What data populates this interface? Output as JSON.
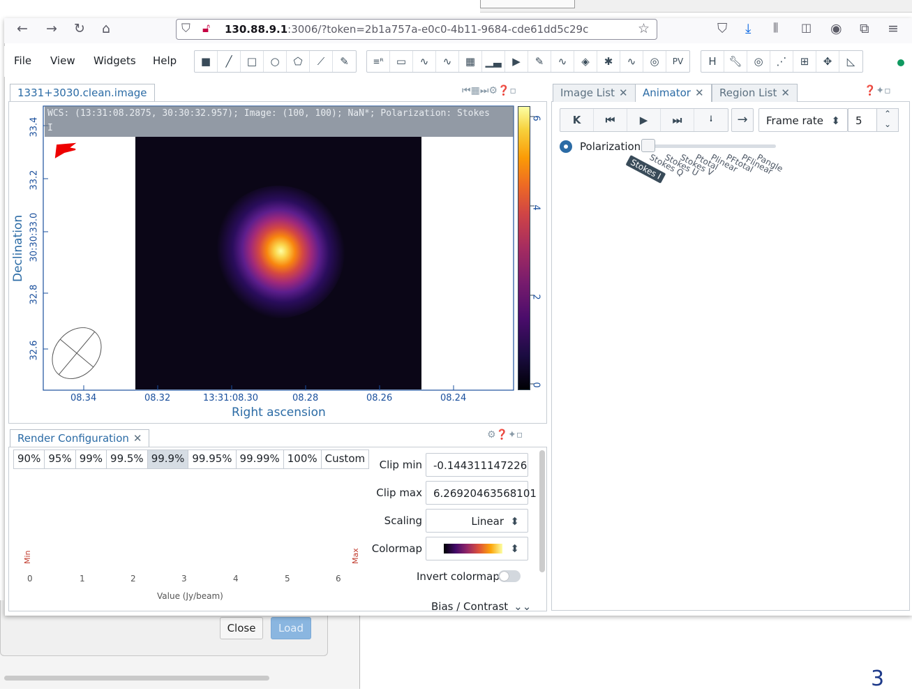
{
  "browser": {
    "url_host": "130.88.9.1",
    "url_rest": ":3006/?token=2b1a757a-e0c0-4b11-9684-cde61dd5c29c"
  },
  "menu": {
    "file": "File",
    "view": "View",
    "widgets": "Widgets",
    "help": "Help"
  },
  "toolbar": {
    "pv": "PV",
    "hist_r": "≡ᴿ"
  },
  "image_view": {
    "tab_label": "1331+3030.clean.image",
    "wcs_line1": "WCS: (13:31:08.2875, 30:30:32.957); Image: (100, 100); NaN*; Polarization: Stokes",
    "wcs_line2": "I",
    "x_ticks": [
      "08.34",
      "08.32",
      "13:31:08.30",
      "08.28",
      "08.26",
      "08.24"
    ],
    "y_ticks": [
      "33.4",
      "33.2",
      "30:30:33.0",
      "32.8",
      "32.6"
    ],
    "x_title": "Right ascension",
    "y_title": "Declination",
    "colorbar_ticks": [
      "6",
      "4",
      "2",
      "0"
    ]
  },
  "animator": {
    "tabs": [
      {
        "label": "Image List"
      },
      {
        "label": "Animator"
      },
      {
        "label": "Region List"
      }
    ],
    "frame_rate_label": "Frame rate",
    "frame_rate_value": "5",
    "polarization_label": "Polarization",
    "slider_labels": [
      "Stokes I",
      "Stokes Q",
      "Stokes U",
      "Stokes V",
      "Ptotal",
      "Plinear",
      "PFtotal",
      "PFlinear",
      "Pangle"
    ],
    "selected": "Stokes I"
  },
  "render_config": {
    "tab_label": "Render Configuration",
    "percentiles": [
      "90%",
      "95%",
      "99%",
      "99.5%",
      "99.9%",
      "99.95%",
      "99.99%",
      "100%",
      "Custom"
    ],
    "active_percentile": "99.9%",
    "clip_min_label": "Clip min",
    "clip_min_value": "-0.144311147226",
    "clip_max_label": "Clip max",
    "clip_max_value": "6.26920463568101",
    "scaling_label": "Scaling",
    "scaling_value": "Linear",
    "colormap_label": "Colormap",
    "invert_label": "Invert colormap",
    "bias_label": "Bias / Contrast",
    "hist_x_ticks": [
      "0",
      "1",
      "2",
      "3",
      "4",
      "5",
      "6"
    ],
    "hist_x_title": "Value (Jy/beam)",
    "min_marker": "Min",
    "max_marker": "Max"
  },
  "dialog": {
    "close_label": "Close",
    "load_label": "Load"
  },
  "corner_mark": "3"
}
